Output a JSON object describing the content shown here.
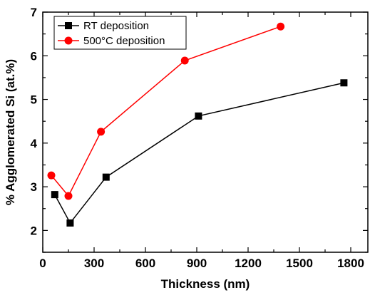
{
  "chart_data": {
    "type": "line",
    "title": "",
    "xlabel": "Thickness (nm)",
    "ylabel": "% Agglomerated Si (at.%)",
    "xlim": [
      0,
      1900
    ],
    "ylim": [
      1.5,
      7
    ],
    "xticks": [
      0,
      300,
      600,
      900,
      1200,
      1500,
      1800
    ],
    "yticks": [
      2,
      3,
      4,
      5,
      6,
      7
    ],
    "legend_position": "top-left",
    "grid": false,
    "series": [
      {
        "name": "RT deposition",
        "color": "#000000",
        "marker": "square",
        "x": [
          70,
          160,
          370,
          910,
          1760
        ],
        "y": [
          2.82,
          2.17,
          3.22,
          4.62,
          5.38
        ]
      },
      {
        "name": "500°C deposition",
        "color": "#ff0000",
        "marker": "circle",
        "x": [
          50,
          150,
          340,
          830,
          1390
        ],
        "y": [
          3.26,
          2.79,
          4.26,
          5.89,
          6.67
        ]
      }
    ]
  }
}
